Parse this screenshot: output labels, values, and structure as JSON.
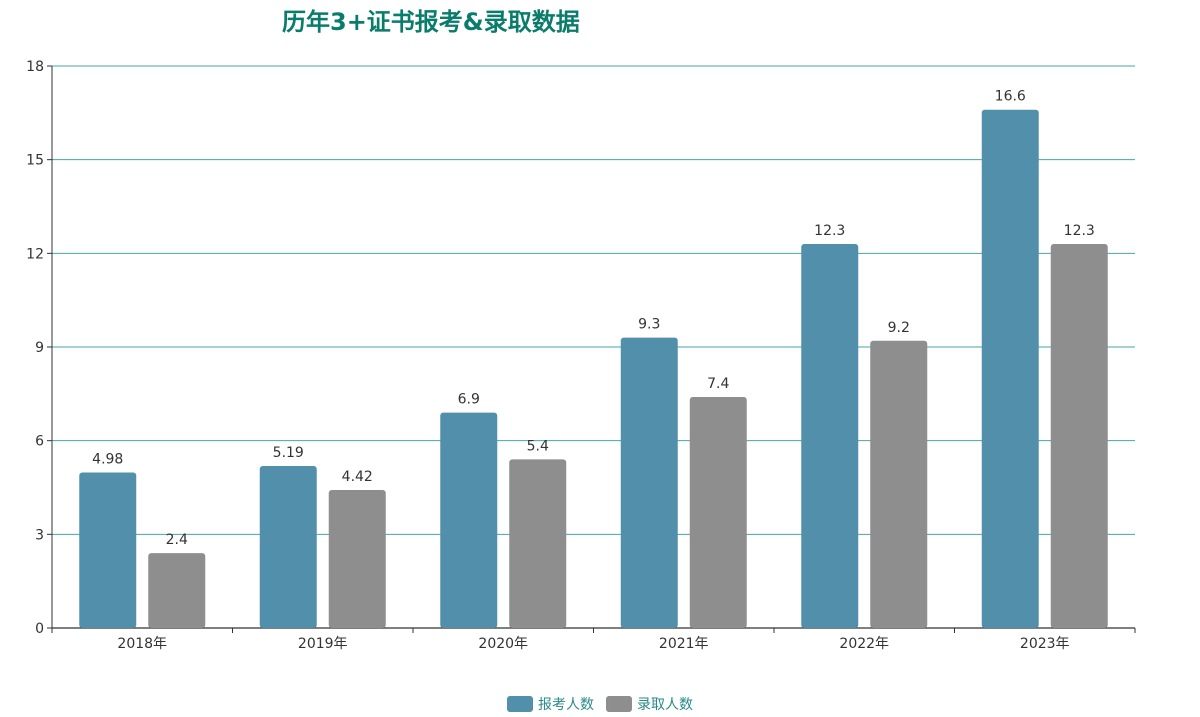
{
  "title": "历年3+证书报考&录取数据",
  "colors": {
    "grid": "#45a6a6",
    "axis": "#333333",
    "title": "#0a7c6b"
  },
  "chart_data": {
    "type": "bar",
    "title": "历年3+证书报考&录取数据",
    "categories": [
      "2018年",
      "2019年",
      "2020年",
      "2021年",
      "2022年",
      "2023年"
    ],
    "series": [
      {
        "name": "报考人数",
        "color": "#528fab",
        "values": [
          4.98,
          5.19,
          6.9,
          9.3,
          12.3,
          16.6
        ],
        "labels": [
          "4.98",
          "5.19",
          "6.9",
          "9.3",
          "12.3",
          "16.6"
        ]
      },
      {
        "name": "录取人数",
        "color": "#8e8e8e",
        "values": [
          2.4,
          4.42,
          5.4,
          7.4,
          9.2,
          12.3
        ],
        "labels": [
          "2.4",
          "4.42",
          "5.4",
          "7.4",
          "9.2",
          "12.3"
        ]
      }
    ],
    "ylim": [
      0,
      18
    ],
    "yticks": [
      "0",
      "3",
      "6",
      "9",
      "12",
      "15",
      "18"
    ],
    "grid": true,
    "legend": "bottom-center"
  }
}
